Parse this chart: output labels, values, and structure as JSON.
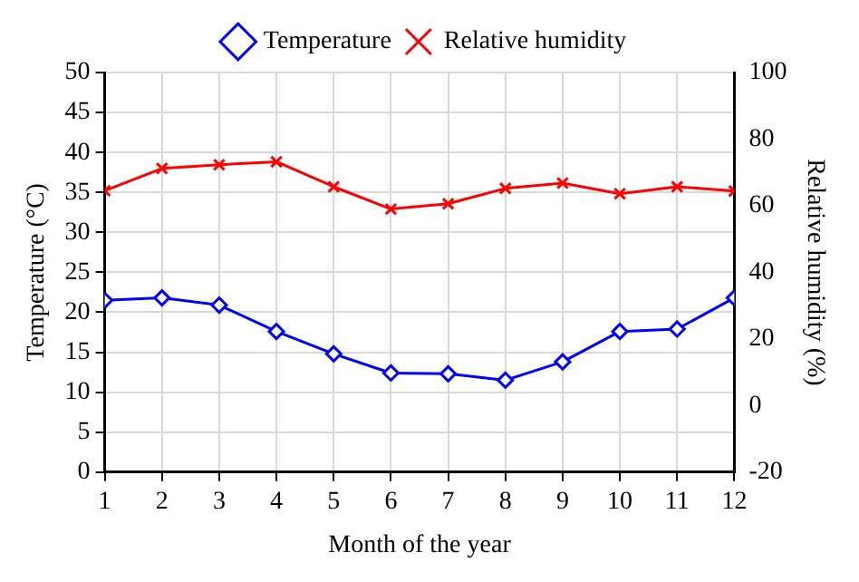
{
  "chart_data": {
    "type": "line",
    "xlabel": "Month of the year",
    "ylabel": "Temperature (°C)",
    "y2label": "Relative humidity (%)",
    "x": [
      1,
      2,
      3,
      4,
      5,
      6,
      7,
      8,
      9,
      10,
      11,
      12
    ],
    "series": [
      {
        "name": "Temperature",
        "color": "#0000ff",
        "marker": "diamond",
        "values": [
          21.5,
          21.8,
          20.9,
          17.6,
          14.8,
          12.4,
          12.3,
          11.5,
          13.8,
          17.6,
          17.9,
          21.8
        ]
      },
      {
        "name": "Relative humidity",
        "color": "#ff0000",
        "marker": "cross",
        "axis": "y2",
        "values": [
          64.5,
          71.2,
          72.3,
          73.2,
          65.7,
          59,
          60.6,
          65.2,
          66.8,
          63.6,
          65.7,
          64.4
        ]
      }
    ],
    "xlim": [
      1,
      12
    ],
    "xticks": [
      1,
      2,
      3,
      4,
      5,
      6,
      7,
      8,
      9,
      10,
      11,
      12
    ],
    "ylim": [
      0,
      50
    ],
    "yticks": [
      0,
      5,
      10,
      15,
      20,
      25,
      30,
      35,
      40,
      45,
      50
    ],
    "y2lim": [
      -20,
      100
    ],
    "y2ticks": [
      -20,
      0,
      20,
      40,
      60,
      80,
      100
    ],
    "grid": true,
    "legend": "top",
    "line_style": "solid"
  }
}
